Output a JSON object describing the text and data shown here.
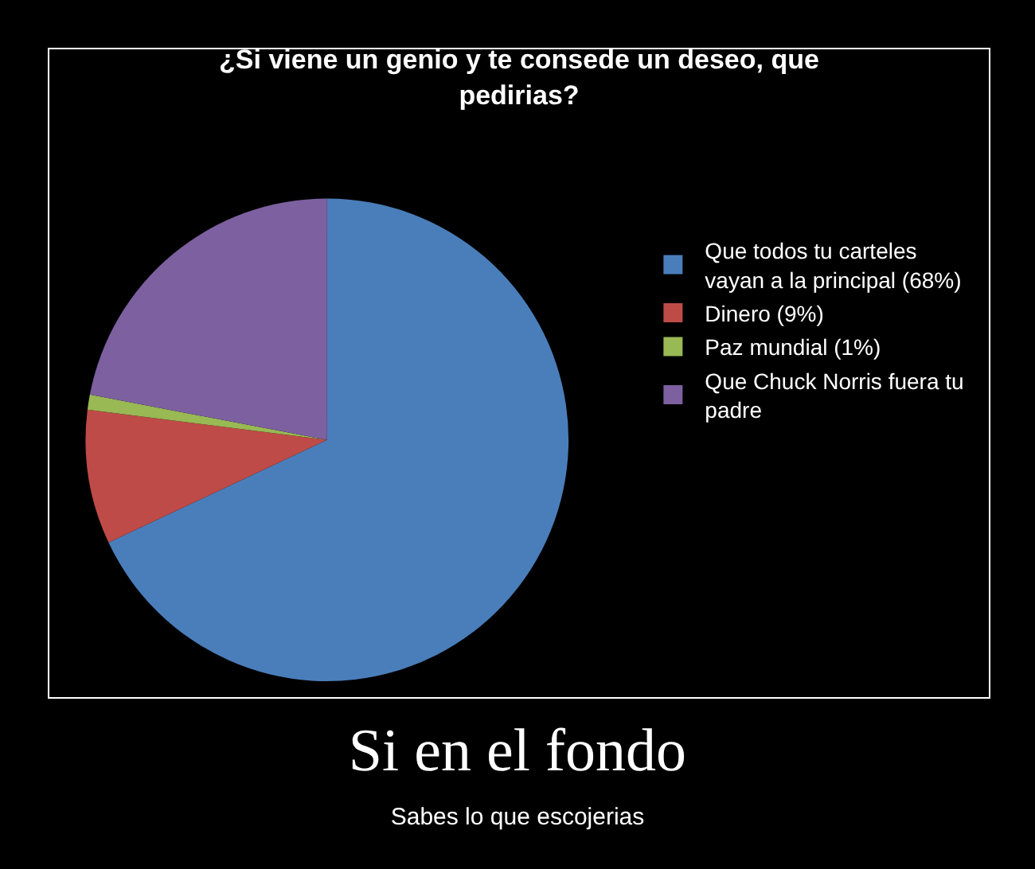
{
  "chart_data": {
    "type": "pie",
    "title": "¿Si viene un genio y te consede un deseo, que pedirias?",
    "categories": [
      "Que todos tu carteles vayan a la principal (68%)",
      "Dinero (9%)",
      "Paz mundial (1%)",
      "Que Chuck Norris fuera tu padre"
    ],
    "values": [
      68,
      9,
      1,
      22
    ],
    "colors": [
      "#4a7ebb",
      "#be4b48",
      "#98b954",
      "#7d60a0"
    ],
    "legend": "right",
    "annotations": [
      "Si en el fondo",
      "Sabes lo que escojerias"
    ]
  }
}
